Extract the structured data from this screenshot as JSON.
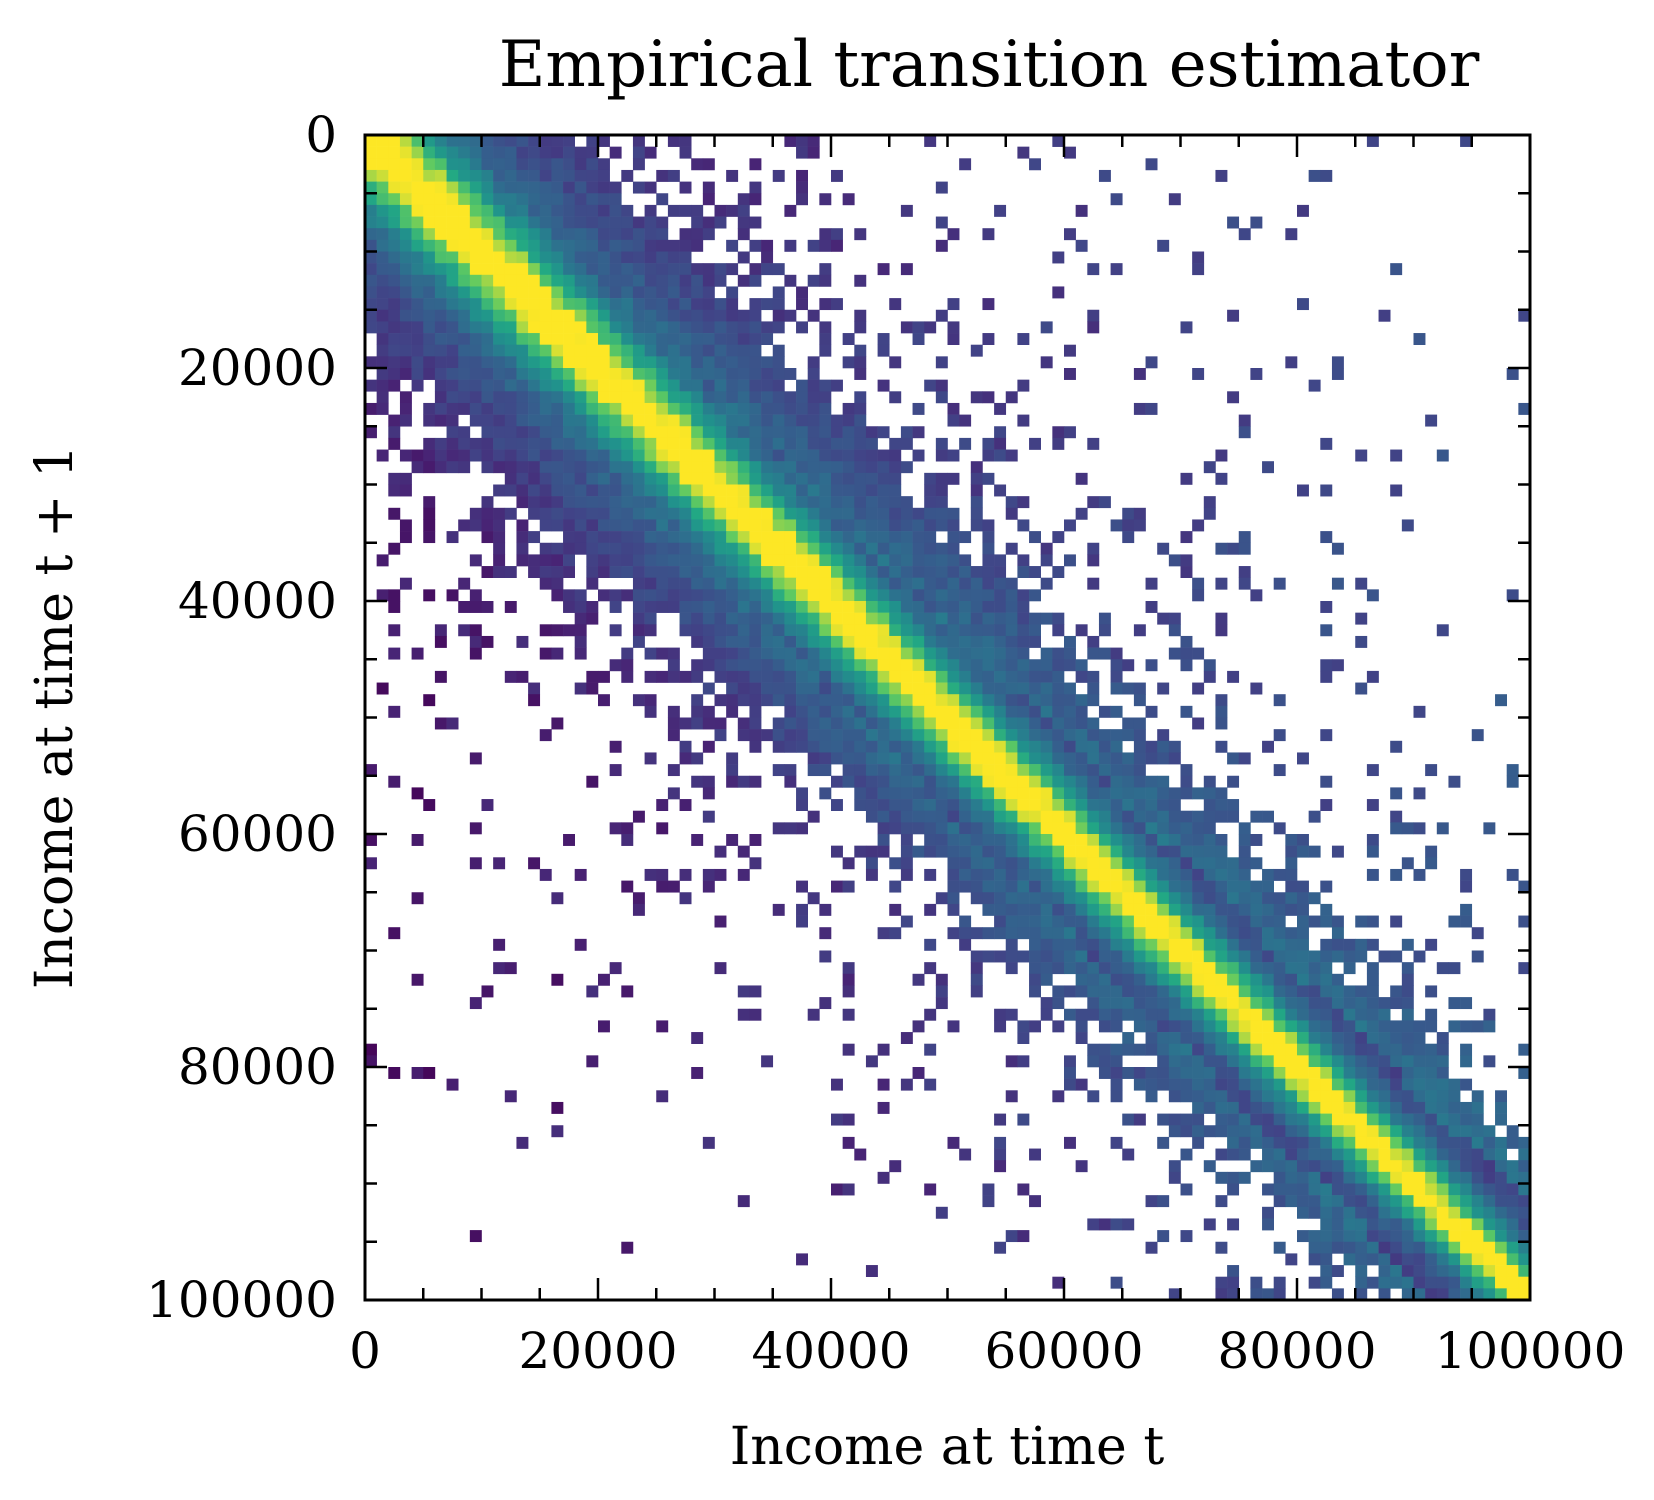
{
  "chart_data": {
    "type": "heatmap",
    "title": "Empirical transition estimator",
    "xlabel": "Income at time t",
    "ylabel": "Income at time t + 1",
    "xlim": [
      0,
      100000
    ],
    "ylim": [
      0,
      100000
    ],
    "y_axis_inverted": true,
    "xticks": [
      "0",
      "20000",
      "40000",
      "60000",
      "80000",
      "100000"
    ],
    "yticks": [
      "0",
      "20000",
      "40000",
      "60000",
      "80000",
      "100000"
    ],
    "colormap": "viridis",
    "bins": 100,
    "grid": false,
    "legend": "none",
    "colors": {
      "low": "#440154",
      "mid_low": "#3b528b",
      "mid": "#21918c",
      "mid_high": "#5ec962",
      "high": "#fde725",
      "empty": "#ffffff"
    },
    "description_of_structure": {
      "diagonal_peak": "highest density along x = y",
      "spread": "density decays away from diagonal; wider spread at low incomes"
    }
  }
}
